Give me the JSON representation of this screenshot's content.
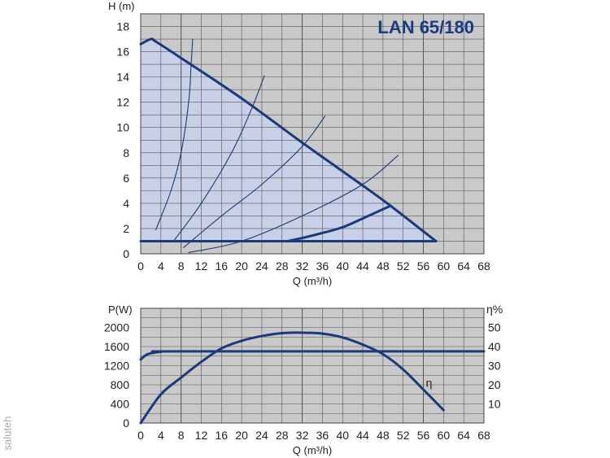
{
  "watermark": "saluteh",
  "colors": {
    "plot_bg": "#c9c9c9",
    "grid": "#555555",
    "curve": "#1b3a7a",
    "fill": "#c7d0e6"
  },
  "chart_data": [
    {
      "type": "line",
      "title": "LAN 65/180",
      "xlabel": "Q (m³/h)",
      "ylabel": "H (m)",
      "xlim": [
        0,
        68
      ],
      "ylim": [
        0,
        19
      ],
      "xticks": [
        0,
        4,
        8,
        12,
        16,
        20,
        24,
        28,
        32,
        36,
        40,
        44,
        48,
        52,
        56,
        60,
        64,
        68
      ],
      "yticks": [
        0,
        2,
        4,
        6,
        8,
        10,
        12,
        14,
        16,
        18
      ],
      "grid": true,
      "series": [
        {
          "role": "max-envelope",
          "x": [
            0,
            2,
            3,
            8,
            20,
            32,
            44,
            49.5,
            58.5
          ],
          "y": [
            16.6,
            17,
            16.8,
            15.5,
            12.3,
            8.8,
            5.4,
            3.8,
            1
          ]
        },
        {
          "role": "min-line",
          "x": [
            0,
            58.5
          ],
          "y": [
            1,
            1
          ]
        },
        {
          "role": "lower-limit",
          "x": [
            29,
            32,
            36,
            40,
            44,
            49.5
          ],
          "y": [
            1,
            1.25,
            1.65,
            2.1,
            2.8,
            3.8
          ]
        },
        {
          "role": "system-curve",
          "x": [
            3,
            6,
            8,
            9.5,
            10,
            10.3
          ],
          "y": [
            1.9,
            5,
            8,
            12,
            15,
            17
          ]
        },
        {
          "role": "system-curve",
          "x": [
            6.5,
            12,
            18,
            22,
            24.5
          ],
          "y": [
            1,
            4,
            8,
            11.5,
            14.1
          ]
        },
        {
          "role": "system-curve",
          "x": [
            8.5,
            16,
            24,
            32,
            36.5
          ],
          "y": [
            0.5,
            3,
            5.5,
            8.5,
            10.9
          ]
        },
        {
          "role": "system-curve",
          "x": [
            9.5,
            20,
            32,
            44,
            51
          ],
          "y": [
            0.1,
            1,
            3,
            5.5,
            7.8
          ]
        }
      ]
    },
    {
      "type": "line",
      "xlabel": "Q (m³/h)",
      "ylabel": "P(W)",
      "ylabel_right": "η%",
      "xlim": [
        0,
        68
      ],
      "ylim": [
        0,
        2400
      ],
      "ylim_right": [
        0,
        60
      ],
      "xticks": [
        0,
        4,
        8,
        12,
        16,
        20,
        24,
        28,
        32,
        36,
        40,
        44,
        48,
        52,
        56,
        60,
        64,
        68
      ],
      "yticks": [
        0,
        400,
        800,
        1200,
        1600,
        2000
      ],
      "yticks_right": [
        10,
        20,
        30,
        40,
        50
      ],
      "grid": true,
      "series": [
        {
          "axis": "left",
          "x": [
            0,
            1,
            2,
            4,
            8,
            68
          ],
          "y": [
            1330,
            1420,
            1460,
            1490,
            1500,
            1500
          ]
        },
        {
          "axis": "right",
          "name": "η",
          "x": [
            0,
            4,
            8,
            12,
            16,
            20,
            24,
            28,
            32,
            36,
            40,
            44,
            48,
            52,
            56,
            60
          ],
          "y": [
            0,
            15,
            23.75,
            32,
            39,
            43,
            45.5,
            47,
            47.25,
            46.75,
            44.75,
            41,
            36,
            28,
            17.5,
            6.75
          ]
        }
      ]
    }
  ]
}
